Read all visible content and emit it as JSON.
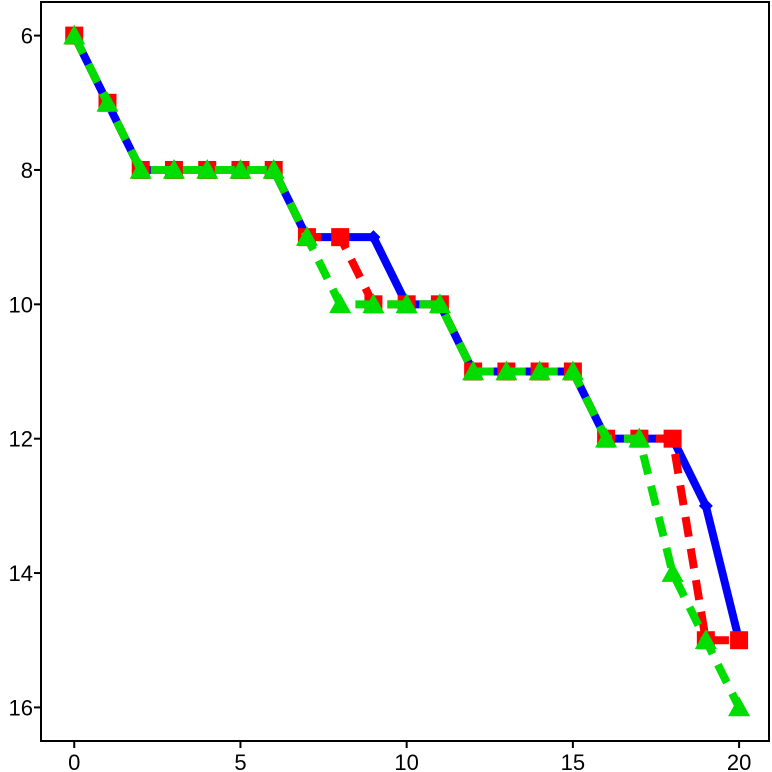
{
  "chart_data": {
    "type": "line",
    "title": "",
    "xlabel": "",
    "ylabel": "",
    "x_ticks": [
      0,
      5,
      10,
      15,
      20
    ],
    "y_ticks": [
      6,
      8,
      10,
      12,
      14,
      16
    ],
    "xlim": [
      -1,
      20.9
    ],
    "ylim": [
      16.5,
      5.5
    ],
    "y_inverted": true,
    "grid": false,
    "legend": "none",
    "series": [
      {
        "color": "#0000ff",
        "line_style": "solid",
        "marker": "diamond",
        "x": [
          0,
          1,
          2,
          3,
          4,
          5,
          6,
          7,
          8,
          9,
          10,
          11,
          12,
          13,
          14,
          15,
          16,
          17,
          18,
          19,
          20
        ],
        "y": [
          6,
          7,
          8,
          8,
          8,
          8,
          8,
          9,
          9,
          9,
          10,
          10,
          11,
          11,
          11,
          11,
          12,
          12,
          12,
          13,
          15
        ]
      },
      {
        "color": "#ff0000",
        "line_style": "dashed",
        "marker": "square",
        "x": [
          0,
          1,
          2,
          3,
          4,
          5,
          6,
          7,
          8,
          9,
          10,
          11,
          12,
          13,
          14,
          15,
          16,
          17,
          18,
          19,
          20
        ],
        "y": [
          6,
          7,
          8,
          8,
          8,
          8,
          8,
          9,
          9,
          10,
          10,
          10,
          11,
          11,
          11,
          11,
          12,
          12,
          12,
          15,
          15
        ]
      },
      {
        "color": "#00dd00",
        "line_style": "dashed",
        "marker": "triangle",
        "x": [
          0,
          1,
          2,
          3,
          4,
          5,
          6,
          7,
          8,
          9,
          10,
          11,
          12,
          13,
          14,
          15,
          16,
          17,
          18,
          19,
          20
        ],
        "y": [
          6,
          7,
          8,
          8,
          8,
          8,
          8,
          9,
          10,
          10,
          10,
          10,
          11,
          11,
          11,
          11,
          12,
          12,
          14,
          15,
          16
        ]
      }
    ]
  }
}
